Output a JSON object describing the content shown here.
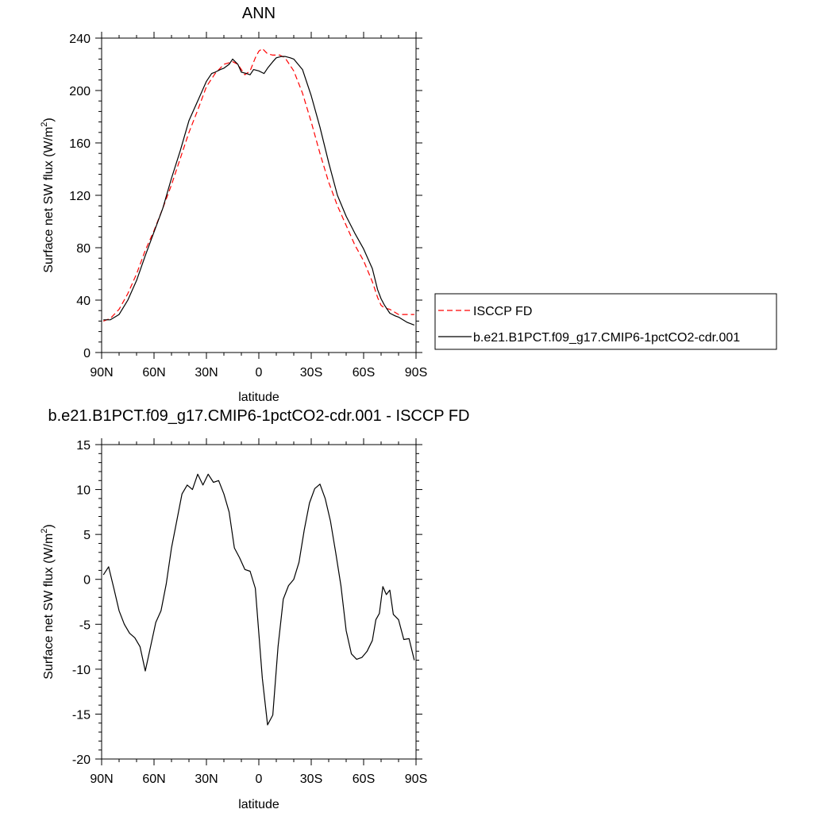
{
  "chart_data": [
    {
      "type": "line",
      "title": "ANN",
      "xlabel": "latitude",
      "ylabel": "Surface net SW flux (W/m",
      "ylabel_sup": "2",
      "ylabel_tail": ")",
      "xlim": [
        -90,
        90
      ],
      "ylim": [
        0,
        240
      ],
      "xticks": [
        -90,
        -60,
        -30,
        0,
        30,
        60,
        90
      ],
      "xtick_labels": [
        "90N",
        "60N",
        "30N",
        "0",
        "30S",
        "60S",
        "90S"
      ],
      "yticks": [
        0,
        40,
        80,
        120,
        160,
        200,
        240
      ],
      "ytick_labels": [
        "0",
        "40",
        "80",
        "120",
        "160",
        "200",
        "240"
      ],
      "grid": false,
      "legend_position": "right",
      "series": [
        {
          "name": "ISCCP FD",
          "color": "#ff0000",
          "dash": "dashed",
          "x": [
            -89,
            -85,
            -80,
            -75,
            -70,
            -65,
            -60,
            -55,
            -50,
            -45,
            -40,
            -35,
            -30,
            -25,
            -20,
            -15,
            -12,
            -8,
            -5,
            -2,
            0,
            2,
            5,
            8,
            12,
            15,
            20,
            25,
            30,
            35,
            40,
            45,
            50,
            55,
            60,
            65,
            68,
            70,
            72,
            75,
            80,
            85,
            89
          ],
          "y": [
            24,
            26,
            33,
            45,
            60,
            78,
            93,
            110,
            128,
            148,
            168,
            185,
            203,
            213,
            220,
            222,
            220,
            212,
            215,
            225,
            230,
            232,
            228,
            227,
            227,
            225,
            215,
            198,
            176,
            152,
            130,
            112,
            97,
            82,
            70,
            54,
            42,
            36,
            34,
            33,
            29,
            29,
            29
          ]
        },
        {
          "name": "b.e21.B1PCT.f09_g17.CMIP6-1pctCO2-cdr.001",
          "color": "#000000",
          "dash": "solid",
          "x": [
            -89,
            -85,
            -80,
            -75,
            -70,
            -65,
            -60,
            -55,
            -50,
            -45,
            -40,
            -35,
            -30,
            -27,
            -25,
            -22,
            -20,
            -17,
            -15,
            -12,
            -10,
            -7,
            -5,
            -3,
            0,
            3,
            5,
            8,
            10,
            13,
            15,
            18,
            20,
            25,
            30,
            35,
            40,
            45,
            50,
            55,
            60,
            65,
            68,
            70,
            72,
            75,
            78,
            80,
            85,
            89
          ],
          "y": [
            25,
            25,
            29,
            40,
            55,
            74,
            92,
            110,
            133,
            154,
            177,
            192,
            207,
            213,
            214,
            216,
            217,
            220,
            224,
            220,
            214,
            213,
            212,
            216,
            215,
            213,
            217,
            222,
            225,
            226,
            226,
            225,
            224,
            216,
            196,
            172,
            145,
            120,
            104,
            91,
            79,
            64,
            48,
            41,
            36,
            30,
            28,
            27,
            23,
            21
          ]
        }
      ]
    },
    {
      "type": "line",
      "title": "b.e21.B1PCT.f09_g17.CMIP6-1pctCO2-cdr.001 - ISCCP FD",
      "xlabel": "latitude",
      "ylabel": "Surface net SW flux (W/m",
      "ylabel_sup": "2",
      "ylabel_tail": ")",
      "xlim": [
        -90,
        90
      ],
      "ylim": [
        -20,
        15
      ],
      "xticks": [
        -90,
        -60,
        -30,
        0,
        30,
        60,
        90
      ],
      "xtick_labels": [
        "90N",
        "60N",
        "30N",
        "0",
        "30S",
        "60S",
        "90S"
      ],
      "yticks": [
        -20,
        -15,
        -10,
        -5,
        0,
        5,
        10,
        15
      ],
      "ytick_labels": [
        "-20",
        "-15",
        "-10",
        "-5",
        "0",
        "5",
        "10",
        "15"
      ],
      "grid": false,
      "series": [
        {
          "name": "",
          "color": "#000000",
          "dash": "solid",
          "x": [
            -89,
            -86,
            -83,
            -80,
            -77,
            -74,
            -71,
            -68,
            -65,
            -62,
            -59,
            -56,
            -53,
            -50,
            -47,
            -44,
            -41,
            -38,
            -35,
            -32,
            -29,
            -26,
            -23,
            -20,
            -17,
            -14,
            -11,
            -8,
            -5,
            -2,
            0,
            2,
            5,
            8,
            11,
            14,
            17,
            20,
            23,
            26,
            29,
            32,
            35,
            38,
            41,
            44,
            47,
            50,
            53,
            56,
            59,
            62,
            65,
            67,
            69,
            71,
            73,
            75,
            77,
            80,
            83,
            86,
            89
          ],
          "y": [
            0.5,
            1.4,
            -1,
            -3.5,
            -5,
            -6,
            -6.5,
            -7.5,
            -10.2,
            -7.5,
            -4.8,
            -3.5,
            -0.5,
            3.5,
            6.5,
            9.5,
            10.5,
            10,
            11.7,
            10.5,
            11.7,
            10.8,
            11,
            9.5,
            7.5,
            3.5,
            2.4,
            1.1,
            0.9,
            -1,
            -6,
            -11,
            -16.2,
            -15.1,
            -7.5,
            -2.2,
            -0.7,
            0,
            1.9,
            5.5,
            8.5,
            10.1,
            10.6,
            9,
            6.5,
            3,
            -0.7,
            -5.7,
            -8.3,
            -8.9,
            -8.7,
            -8,
            -6.8,
            -4.5,
            -3.8,
            -0.8,
            -1.7,
            -1.2,
            -3.9,
            -4.5,
            -6.7,
            -6.6,
            -9
          ]
        }
      ]
    }
  ]
}
